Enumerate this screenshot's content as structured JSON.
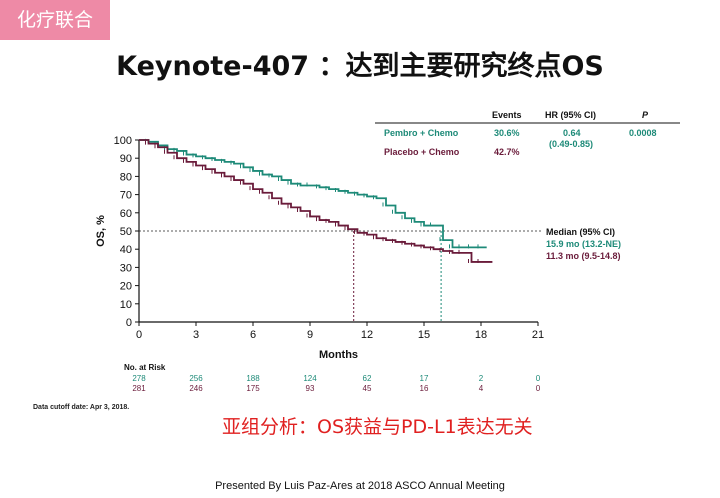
{
  "header": {
    "tag": "化疗联合",
    "title": "Keynote-407 ：达到主要研究终点OS",
    "subtitle": "亚组分析：OS获益与PD-L1表达无关",
    "cutoff": "Data cutoff date: Apr 3, 2018.",
    "footer": "Presented By Luis Paz-Ares at 2018 ASCO Annual Meeting"
  },
  "chart_data": {
    "type": "line",
    "title": "",
    "xlabel": "Months",
    "ylabel": "OS, %",
    "xlim": [
      0,
      21
    ],
    "ylim": [
      0,
      100
    ],
    "x_ticks": [
      0,
      3,
      6,
      9,
      12,
      15,
      18,
      21
    ],
    "y_ticks": [
      0,
      10,
      20,
      30,
      40,
      50,
      60,
      70,
      80,
      90,
      100
    ],
    "median_line": 50,
    "series": [
      {
        "name": "Pembro + Chemo",
        "color": "#1d8a78",
        "median_x": 15.9,
        "x": [
          0,
          0.5,
          1,
          1.5,
          2,
          2.5,
          3,
          3.5,
          4,
          4.5,
          5,
          5.5,
          6,
          6.5,
          7,
          7.5,
          8,
          8.5,
          9,
          9.5,
          10,
          10.5,
          11,
          11.5,
          12,
          12.5,
          13,
          13.5,
          14,
          14.5,
          15,
          15.5,
          16,
          16.5,
          17,
          17.5,
          18,
          18.3
        ],
        "y": [
          100,
          99,
          97,
          95,
          94,
          92,
          91,
          90,
          89,
          88,
          87,
          85,
          83,
          81,
          80,
          78,
          76,
          75,
          75,
          74,
          73,
          72,
          71,
          70,
          69,
          68,
          64,
          60,
          57,
          55,
          53,
          53,
          45,
          41,
          41,
          41,
          41,
          41
        ]
      },
      {
        "name": "Placebo + Chemo",
        "color": "#6a1b3a",
        "median_x": 11.3,
        "x": [
          0,
          0.5,
          1,
          1.5,
          2,
          2.5,
          3,
          3.5,
          4,
          4.5,
          5,
          5.5,
          6,
          6.5,
          7,
          7.5,
          8,
          8.5,
          9,
          9.5,
          10,
          10.5,
          11,
          11.5,
          12,
          12.5,
          13,
          13.5,
          14,
          14.5,
          15,
          15.5,
          16,
          16.5,
          17,
          17.5,
          18,
          18.6
        ],
        "y": [
          100,
          98,
          96,
          93,
          90,
          88,
          86,
          84,
          82,
          80,
          78,
          76,
          73,
          71,
          68,
          65,
          63,
          61,
          58,
          56,
          55,
          53,
          51,
          49,
          48,
          46,
          45,
          44,
          43,
          42,
          41,
          40,
          39,
          38,
          38,
          33,
          33,
          33
        ]
      }
    ],
    "legend_table": {
      "headers": [
        "Events",
        "HR (95% CI)",
        "P"
      ],
      "rows": [
        {
          "name": "Pembro + Chemo",
          "events": "30.6%",
          "hr": "0.64",
          "ci": "(0.49-0.85)",
          "p": "0.0008"
        },
        {
          "name": "Placebo + Chemo",
          "events": "42.7%",
          "hr": "",
          "ci": "",
          "p": ""
        }
      ]
    },
    "median_labels": {
      "title": "Median (95% CI)",
      "pembro": "15.9 mo (13.2-NE)",
      "placebo": "11.3 mo (9.5-14.8)"
    },
    "at_risk": {
      "title": "No. at Risk",
      "pembro": [
        "278",
        "256",
        "188",
        "124",
        "62",
        "17",
        "2",
        "0"
      ],
      "placebo": [
        "281",
        "246",
        "175",
        "93",
        "45",
        "16",
        "4",
        "0"
      ]
    }
  }
}
